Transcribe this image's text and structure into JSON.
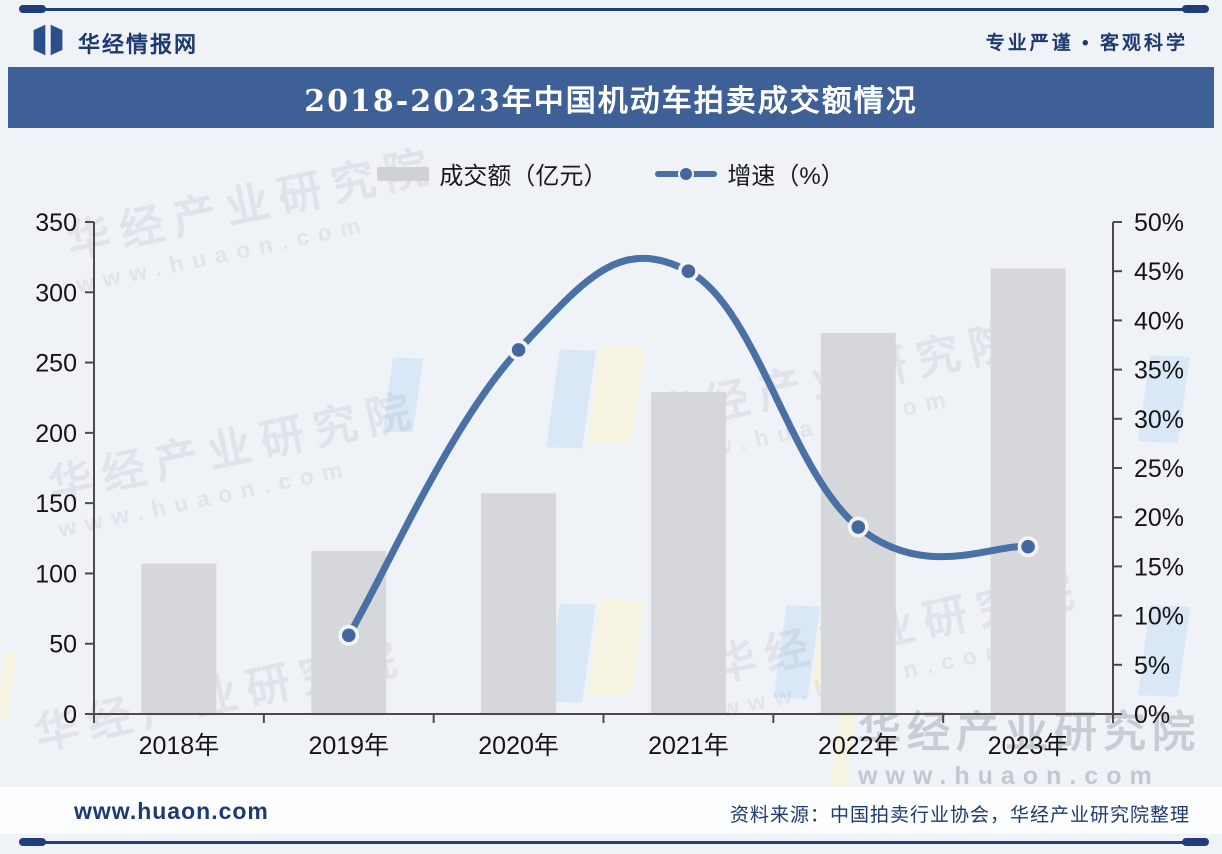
{
  "header": {
    "brand": "华经情报网",
    "slogan": "专业严谨 • 客观科学"
  },
  "title_bar": {
    "title": "2018-2023年中国机动车拍卖成交额情况"
  },
  "chart_data": {
    "type": "bar",
    "subtype": "combo bar+line, dual axis",
    "title": "2018-2023年中国机动车拍卖成交额情况",
    "categories": [
      "2018年",
      "2019年",
      "2020年",
      "2021年",
      "2022年",
      "2023年"
    ],
    "series": [
      {
        "name": "成交额（亿元）",
        "type": "bar",
        "axis": "left",
        "color": "#d6d7da",
        "values": [
          107,
          116,
          157,
          229,
          271,
          317
        ]
      },
      {
        "name": "增速（%）",
        "type": "line",
        "axis": "right",
        "color": "#4a71a5",
        "marker_color": "#44689e",
        "values": [
          null,
          8,
          37,
          45,
          19,
          17
        ]
      }
    ],
    "left_axis": {
      "min": 0,
      "max": 350,
      "step": 50,
      "tick_labels": [
        "0",
        "50",
        "100",
        "150",
        "200",
        "250",
        "300",
        "350"
      ]
    },
    "right_axis": {
      "min": 0,
      "max": 50,
      "step": 5,
      "tick_labels": [
        "0%",
        "5%",
        "10%",
        "15%",
        "20%",
        "25%",
        "30%",
        "35%",
        "40%",
        "45%",
        "50%"
      ]
    },
    "grid": false,
    "legend_position": "top-center"
  },
  "watermark": {
    "text": "华经产业研究院",
    "subtext": "www.huaon.com"
  },
  "footer": {
    "website": "www.huaon.com",
    "source": "资料来源：中国拍卖行业协会，华经产业研究院整理"
  }
}
